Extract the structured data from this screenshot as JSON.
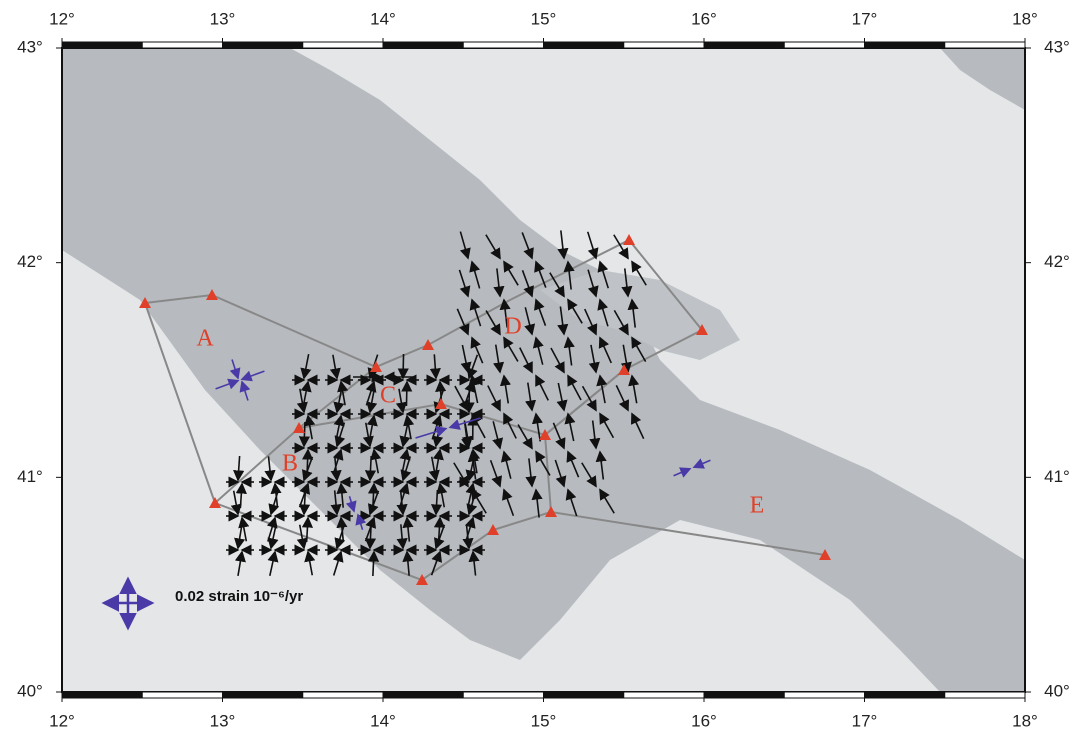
{
  "map": {
    "xlim": [
      12,
      18
    ],
    "ylim": [
      40,
      43
    ],
    "xticks": [
      {
        "value": 12,
        "label": "12°"
      },
      {
        "value": 13,
        "label": "13°"
      },
      {
        "value": 14,
        "label": "14°"
      },
      {
        "value": 15,
        "label": "15°"
      },
      {
        "value": 16,
        "label": "16°"
      },
      {
        "value": 17,
        "label": "17°"
      },
      {
        "value": 18,
        "label": "18°"
      }
    ],
    "yticks": [
      {
        "value": 40,
        "label": "40°"
      },
      {
        "value": 41,
        "label": "41°"
      },
      {
        "value": 42,
        "label": "42°"
      },
      {
        "value": 43,
        "label": "43°"
      }
    ],
    "regions": [
      "A",
      "B",
      "C",
      "D",
      "E"
    ],
    "scale_label": "0.02 strain 10⁻⁶/yr"
  }
}
